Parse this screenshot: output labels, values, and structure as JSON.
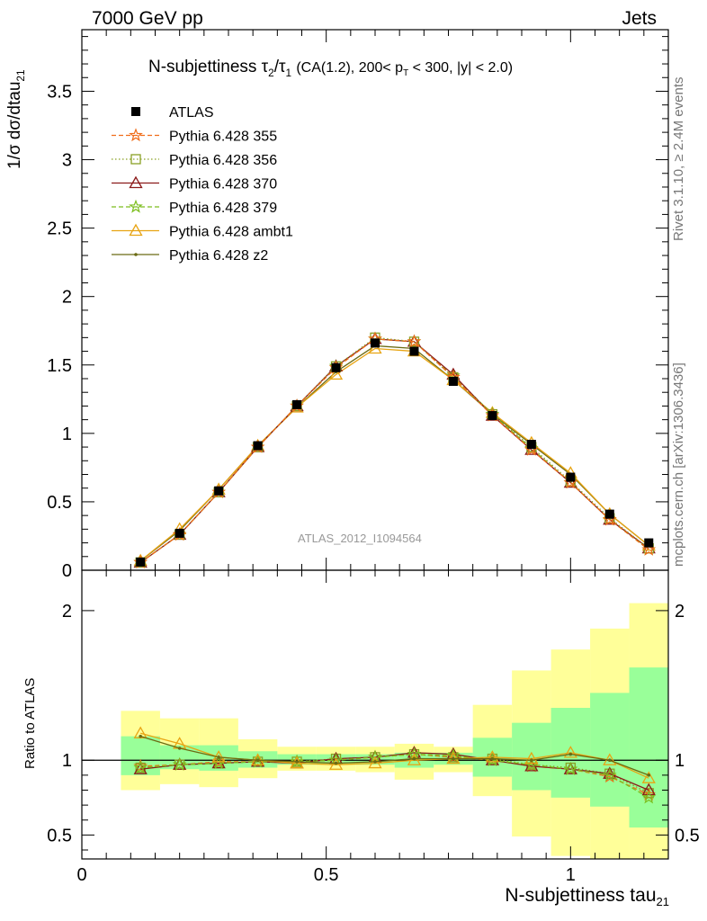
{
  "header": {
    "left": "7000 GeV pp",
    "right": "Jets"
  },
  "side_labels": {
    "rivet": "Rivet 3.1.10, ≥ 2.4M events",
    "mcplots": "mcplots.cern.ch [arXiv:1306.3436]"
  },
  "watermark": "ATLAS_2012_I1094564",
  "chart_data": [
    {
      "type": "line",
      "panel": "main",
      "title": "N-subjettiness τ2/τ1 (CA(1.2), 200< pT < 300, |y| < 2.0)",
      "ylabel": "1/σ dσ/dtau21",
      "xlabel": "N-subjettiness tau21",
      "xlim": [
        0,
        1.2
      ],
      "ylim": [
        0,
        3.95
      ],
      "y_ticks": [
        "0",
        "0.5",
        "1",
        "1.5",
        "2",
        "2.5",
        "3",
        "3.5"
      ],
      "x_ticks": [
        "0",
        "0.5",
        "1"
      ],
      "legend_position": "top-left",
      "x": [
        0.12,
        0.2,
        0.28,
        0.36,
        0.44,
        0.52,
        0.6,
        0.68,
        0.76,
        0.84,
        0.92,
        1.0,
        1.08,
        1.16
      ],
      "series": [
        {
          "name": "ATLAS",
          "color": "#000000",
          "marker": "square",
          "dash": "none",
          "values": [
            0.06,
            0.27,
            0.58,
            0.91,
            1.21,
            1.48,
            1.66,
            1.6,
            1.38,
            1.13,
            0.92,
            0.68,
            0.41,
            0.2
          ]
        },
        {
          "name": "Pythia 6.428 355",
          "color": "#f06d1a",
          "marker": "star",
          "dash": "5,3",
          "values": [
            0.057,
            0.26,
            0.57,
            0.9,
            1.2,
            1.48,
            1.69,
            1.67,
            1.41,
            1.13,
            0.88,
            0.64,
            0.37,
            0.15
          ]
        },
        {
          "name": "Pythia 6.428 356",
          "color": "#8aa025",
          "marker": "open-square",
          "dash": "1.5,2.5",
          "values": [
            0.057,
            0.26,
            0.57,
            0.9,
            1.2,
            1.49,
            1.7,
            1.67,
            1.41,
            1.14,
            0.9,
            0.65,
            0.38,
            0.16
          ]
        },
        {
          "name": "Pythia 6.428 370",
          "color": "#8b1a1a",
          "marker": "open-triangle",
          "dash": "none",
          "values": [
            0.056,
            0.26,
            0.57,
            0.9,
            1.2,
            1.49,
            1.69,
            1.67,
            1.43,
            1.13,
            0.88,
            0.64,
            0.37,
            0.16
          ]
        },
        {
          "name": "Pythia 6.428 379",
          "color": "#7cbe1e",
          "marker": "star",
          "dash": "5,3",
          "values": [
            0.057,
            0.26,
            0.57,
            0.9,
            1.2,
            1.49,
            1.69,
            1.67,
            1.42,
            1.14,
            0.89,
            0.64,
            0.37,
            0.15
          ]
        },
        {
          "name": "Pythia 6.428 ambt1",
          "color": "#e8a413",
          "marker": "open-triangle",
          "dash": "none",
          "values": [
            0.069,
            0.3,
            0.59,
            0.91,
            1.19,
            1.43,
            1.62,
            1.6,
            1.39,
            1.15,
            0.93,
            0.71,
            0.41,
            0.18
          ]
        },
        {
          "name": "Pythia 6.428 z2",
          "color": "#6b6b13",
          "marker": "dot",
          "dash": "none",
          "values": [
            0.068,
            0.29,
            0.59,
            0.91,
            1.19,
            1.45,
            1.64,
            1.62,
            1.39,
            1.14,
            0.92,
            0.7,
            0.41,
            0.18
          ]
        }
      ]
    },
    {
      "type": "line",
      "panel": "ratio",
      "ylabel": "Ratio to ATLAS",
      "xlim": [
        0,
        1.2
      ],
      "ylim": [
        0.34,
        2.27
      ],
      "y_ticks": [
        "0.5",
        "1",
        "2"
      ],
      "bin_edges": [
        0.08,
        0.16,
        0.24,
        0.32,
        0.4,
        0.48,
        0.56,
        0.64,
        0.72,
        0.8,
        0.88,
        0.96,
        1.04,
        1.12,
        1.2
      ],
      "band_inner": [
        [
          0.9,
          1.16
        ],
        [
          0.94,
          1.1
        ],
        [
          0.93,
          1.1
        ],
        [
          0.95,
          1.06
        ],
        [
          0.97,
          1.04
        ],
        [
          0.97,
          1.04
        ],
        [
          0.97,
          1.04
        ],
        [
          0.95,
          1.05
        ],
        [
          0.97,
          1.05
        ],
        [
          0.89,
          1.15
        ],
        [
          0.8,
          1.25
        ],
        [
          0.75,
          1.35
        ],
        [
          0.69,
          1.45
        ],
        [
          0.55,
          1.62
        ]
      ],
      "band_outer": [
        [
          0.8,
          1.33
        ],
        [
          0.84,
          1.28
        ],
        [
          0.82,
          1.28
        ],
        [
          0.88,
          1.14
        ],
        [
          0.93,
          1.09
        ],
        [
          0.93,
          1.09
        ],
        [
          0.92,
          1.09
        ],
        [
          0.87,
          1.11
        ],
        [
          0.92,
          1.09
        ],
        [
          0.76,
          1.37
        ],
        [
          0.49,
          1.6
        ],
        [
          0.36,
          1.74
        ],
        [
          0.34,
          1.88
        ],
        [
          0.34,
          2.05
        ]
      ],
      "series": [
        {
          "name": "Pythia 6.428 355",
          "values": [
            0.96,
            0.97,
            0.99,
            0.99,
            0.99,
            1.0,
            1.02,
            1.04,
            1.02,
            1.0,
            0.96,
            0.94,
            0.89,
            0.77
          ]
        },
        {
          "name": "Pythia 6.428 356",
          "values": [
            0.95,
            0.97,
            0.98,
            0.99,
            0.99,
            1.01,
            1.02,
            1.04,
            1.02,
            1.01,
            0.97,
            0.95,
            0.91,
            0.78
          ]
        },
        {
          "name": "Pythia 6.428 370",
          "values": [
            0.94,
            0.97,
            0.98,
            0.99,
            0.98,
            1.01,
            1.02,
            1.05,
            1.04,
            1.0,
            0.96,
            0.94,
            0.91,
            0.8
          ]
        },
        {
          "name": "Pythia 6.428 379",
          "values": [
            0.95,
            0.97,
            0.98,
            0.99,
            0.99,
            1.0,
            1.02,
            1.04,
            1.03,
            1.0,
            0.97,
            0.94,
            0.9,
            0.75
          ]
        },
        {
          "name": "Pythia 6.428 ambt1",
          "values": [
            1.18,
            1.11,
            1.02,
            1.0,
            0.98,
            0.97,
            0.98,
            1.0,
            1.01,
            1.02,
            1.01,
            1.05,
            1.0,
            0.88
          ]
        },
        {
          "name": "Pythia 6.428 z2",
          "values": [
            1.16,
            1.08,
            1.02,
            1.0,
            0.99,
            0.98,
            0.99,
            1.01,
            1.01,
            1.01,
            1.0,
            1.04,
            1.0,
            0.9
          ]
        }
      ]
    }
  ]
}
